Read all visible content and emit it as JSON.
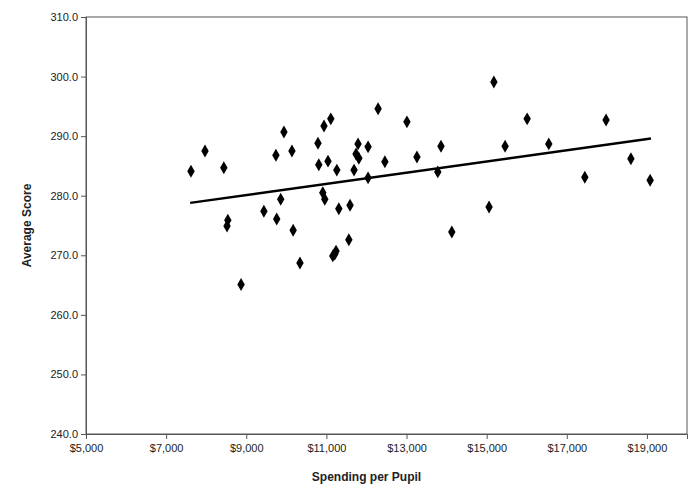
{
  "chart_data": {
    "type": "scatter",
    "x_label": "Spending per Pupil",
    "y_label": "Average Score",
    "xlim": [
      5000,
      20000
    ],
    "ylim": [
      240,
      310
    ],
    "xticks": [
      {
        "value": 5000,
        "label": "$5,000"
      },
      {
        "value": 7000,
        "label": "$7,000"
      },
      {
        "value": 9000,
        "label": "$9,000"
      },
      {
        "value": 11000,
        "label": "$11,000"
      },
      {
        "value": 13000,
        "label": "$13,000"
      },
      {
        "value": 15000,
        "label": "$15,000"
      },
      {
        "value": 17000,
        "label": "$17,000"
      },
      {
        "value": 19000,
        "label": "$19,000"
      }
    ],
    "yticks": [
      {
        "value": 240,
        "label": "240.0"
      },
      {
        "value": 250,
        "label": "250.0"
      },
      {
        "value": 260,
        "label": "260.0"
      },
      {
        "value": 270,
        "label": "270.0"
      },
      {
        "value": 280,
        "label": "280.0"
      },
      {
        "value": 290,
        "label": "290.0"
      },
      {
        "value": 300,
        "label": "300.0"
      },
      {
        "value": 310,
        "label": "310.0"
      }
    ],
    "grid": false,
    "series": [
      {
        "type": "scatter",
        "marker": "diamond",
        "color": "#000000",
        "x": [
          7620,
          7970,
          8440,
          8540,
          8520,
          8870,
          9440,
          9740,
          9760,
          9860,
          9940,
          10140,
          10170,
          10340,
          10790,
          10810,
          10910,
          10960,
          10940,
          11040,
          11110,
          11160,
          11210,
          11240,
          11260,
          11310,
          11560,
          11590,
          11690,
          11740,
          11790,
          11810,
          12040,
          12040,
          12290,
          12460,
          13010,
          13260,
          13780,
          13860,
          14130,
          15060,
          15180,
          15460,
          16010,
          16550,
          17450,
          17980,
          18600,
          19080
        ],
        "values": [
          284.1,
          287.5,
          284.7,
          275.9,
          274.9,
          265.1,
          277.4,
          286.8,
          276.1,
          279.4,
          290.7,
          287.5,
          274.2,
          268.7,
          288.8,
          285.2,
          280.5,
          279.4,
          291.7,
          285.8,
          292.9,
          269.9,
          270.2,
          270.7,
          284.3,
          277.8,
          272.6,
          278.4,
          284.3,
          287.0,
          288.7,
          286.3,
          283.0,
          288.2,
          294.6,
          285.7,
          292.4,
          286.5,
          284.0,
          288.3,
          273.9,
          278.1,
          299.1,
          288.3,
          292.9,
          288.7,
          283.1,
          292.7,
          286.2,
          282.6
        ]
      },
      {
        "type": "line",
        "line_style": "solid",
        "color": "#000000",
        "x": [
          7600,
          19100
        ],
        "values": [
          278.8,
          289.6
        ]
      }
    ]
  }
}
